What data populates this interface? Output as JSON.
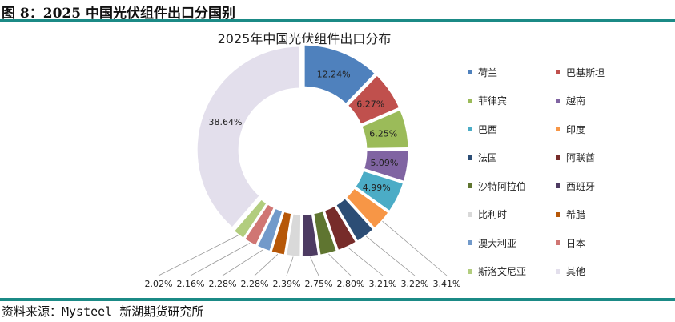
{
  "header": "图 8：2025 中国光伏组件出口分国别",
  "source": "资料来源：Mysteel 新湖期货研究所",
  "chart_data": {
    "type": "pie",
    "donut": true,
    "title": "2025年中国光伏组件出口分布",
    "categories": [
      "荷兰",
      "巴基斯坦",
      "菲律宾",
      "越南",
      "巴西",
      "印度",
      "法国",
      "阿联酋",
      "沙特阿拉伯",
      "西班牙",
      "比利时",
      "希腊",
      "澳大利亚",
      "日本",
      "斯洛文尼亚",
      "其他"
    ],
    "values": [
      12.24,
      6.27,
      6.25,
      5.09,
      4.99,
      3.41,
      3.22,
      3.21,
      2.8,
      2.75,
      2.39,
      2.28,
      2.28,
      2.16,
      2.02,
      38.64
    ],
    "labels": [
      "12.24%",
      "6.27%",
      "6.25%",
      "5.09%",
      "4.99%",
      "3.41%",
      "3.22%",
      "3.21%",
      "2.80%",
      "2.75%",
      "2.39%",
      "2.28%",
      "2.28%",
      "2.16%",
      "2.02%",
      "38.64%"
    ],
    "colors": [
      "#4f81bd",
      "#c0504d",
      "#9bbb59",
      "#8064a2",
      "#4bacc6",
      "#f79646",
      "#2c4d75",
      "#772c2a",
      "#5f7530",
      "#4d3b62",
      "#d9d9d9",
      "#b65708",
      "#729aca",
      "#d07673",
      "#b2cd7e",
      "#e3dfec"
    ],
    "legend": "right"
  }
}
